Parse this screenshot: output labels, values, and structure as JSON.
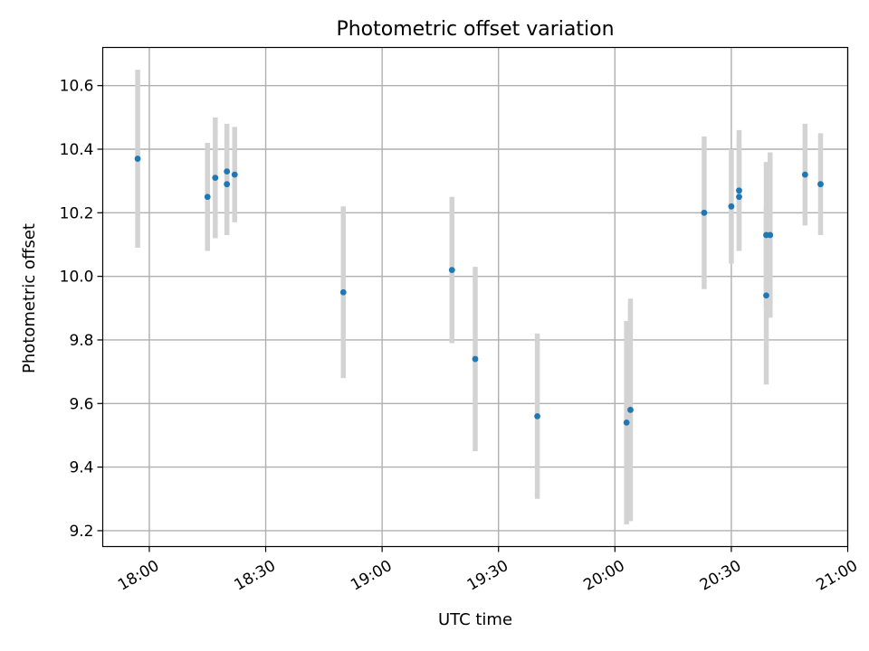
{
  "chart_data": {
    "type": "scatter",
    "title": "Photometric offset variation",
    "xlabel": "UTC time",
    "ylabel": "Photometric offset",
    "xlim": [
      "17:48",
      "21:00"
    ],
    "ylim": [
      9.15,
      10.72
    ],
    "x_ticks": [
      "18:00",
      "18:30",
      "19:00",
      "19:30",
      "20:00",
      "20:30",
      "21:00"
    ],
    "y_ticks": [
      9.2,
      9.4,
      9.6,
      9.8,
      10.0,
      10.2,
      10.4,
      10.6
    ],
    "grid": true,
    "colors": {
      "point": "#1f77b4",
      "errorbar": "#d3d3d3",
      "grid": "#b0b0b0"
    },
    "points": [
      {
        "x": "17:57",
        "y": 10.37,
        "err": 0.28
      },
      {
        "x": "18:15",
        "y": 10.25,
        "err": 0.17
      },
      {
        "x": "18:17",
        "y": 10.31,
        "err": 0.19
      },
      {
        "x": "18:20",
        "y": 10.33,
        "err": 0.15
      },
      {
        "x": "18:20",
        "y": 10.29,
        "err": 0.16
      },
      {
        "x": "18:22",
        "y": 10.32,
        "err": 0.15
      },
      {
        "x": "18:50",
        "y": 9.95,
        "err": 0.27
      },
      {
        "x": "19:18",
        "y": 10.02,
        "err": 0.23
      },
      {
        "x": "19:24",
        "y": 9.74,
        "err": 0.29
      },
      {
        "x": "19:40",
        "y": 9.56,
        "err": 0.26
      },
      {
        "x": "20:03",
        "y": 9.54,
        "err": 0.32
      },
      {
        "x": "20:04",
        "y": 9.58,
        "err": 0.35
      },
      {
        "x": "20:23",
        "y": 10.2,
        "err": 0.24
      },
      {
        "x": "20:30",
        "y": 10.22,
        "err": 0.18
      },
      {
        "x": "20:32",
        "y": 10.25,
        "err": 0.17
      },
      {
        "x": "20:32",
        "y": 10.27,
        "err": 0.19
      },
      {
        "x": "20:39",
        "y": 9.94,
        "err": 0.28
      },
      {
        "x": "20:39",
        "y": 10.13,
        "err": 0.23
      },
      {
        "x": "20:40",
        "y": 10.13,
        "err": 0.26
      },
      {
        "x": "20:49",
        "y": 10.32,
        "err": 0.16
      },
      {
        "x": "20:53",
        "y": 10.29,
        "err": 0.16
      }
    ]
  }
}
